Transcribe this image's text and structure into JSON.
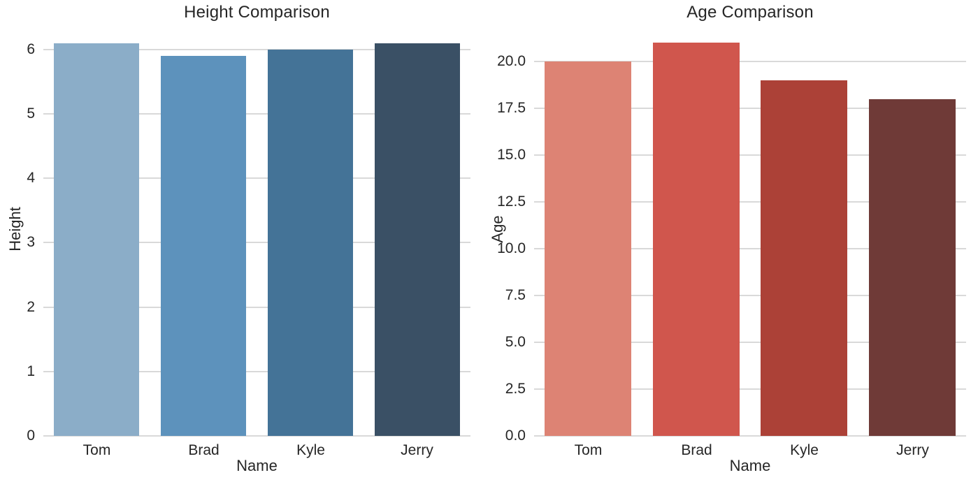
{
  "styles": {
    "background_color": "#ffffff",
    "grid_color": "#d9d9d9",
    "text_color": "#262626"
  },
  "chart_data": [
    {
      "type": "bar",
      "title": "Height Comparison",
      "xlabel": "Name",
      "ylabel": "Height",
      "categories": [
        "Tom",
        "Brad",
        "Kyle",
        "Jerry"
      ],
      "values": [
        6.1,
        5.9,
        6.0,
        6.1
      ],
      "bar_colors": [
        "#8badc8",
        "#5d92bc",
        "#447397",
        "#3a5065"
      ],
      "palette": "Blues_d",
      "ylim": [
        0,
        6.41
      ],
      "yticks": [
        0,
        1,
        2,
        3,
        4,
        5,
        6
      ],
      "ytick_labels": [
        "0",
        "1",
        "2",
        "3",
        "4",
        "5",
        "6"
      ],
      "grid": "horizontal",
      "legend": "none"
    },
    {
      "type": "bar",
      "title": "Age Comparison",
      "xlabel": "Name",
      "ylabel": "Age",
      "categories": [
        "Tom",
        "Brad",
        "Kyle",
        "Jerry"
      ],
      "values": [
        20,
        21,
        19,
        18
      ],
      "bar_colors": [
        "#dd8374",
        "#d0564d",
        "#ac4137",
        "#6f3a37"
      ],
      "palette": "Reds_d",
      "ylim": [
        0,
        22.05
      ],
      "yticks": [
        0,
        2.5,
        5,
        7.5,
        10,
        12.5,
        15,
        17.5,
        20
      ],
      "ytick_labels": [
        "0.0",
        "2.5",
        "5.0",
        "7.5",
        "10.0",
        "12.5",
        "15.0",
        "17.5",
        "20.0"
      ],
      "grid": "horizontal",
      "legend": "none"
    }
  ]
}
